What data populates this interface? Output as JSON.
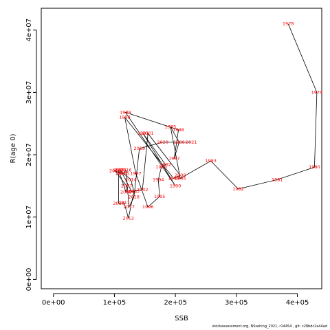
{
  "chart_data": {
    "type": "line",
    "xlabel": "SSB",
    "ylabel": "R(age 0)",
    "xlim": [
      -20000,
      440000
    ],
    "ylim": [
      -1500000,
      43500000
    ],
    "xticks": [
      0,
      100000,
      200000,
      300000,
      400000
    ],
    "xtick_labels": [
      "0e+00",
      "1e+05",
      "2e+05",
      "3e+05",
      "4e+05"
    ],
    "yticks": [
      0,
      10000000,
      20000000,
      30000000,
      40000000
    ],
    "ytick_labels": [
      "0e+00",
      "1e+07",
      "2e+07",
      "3e+07",
      "4e+07"
    ],
    "label_color": "#ff0000",
    "line_color": "#000000",
    "points": [
      {
        "year": "1978",
        "ssb": 385000,
        "rec": 41000000
      },
      {
        "year": "1979",
        "ssb": 432000,
        "rec": 30000000
      },
      {
        "year": "1980",
        "ssb": 428000,
        "rec": 18000000
      },
      {
        "year": "1981",
        "ssb": 367000,
        "rec": 16000000
      },
      {
        "year": "1982",
        "ssb": 303000,
        "rec": 14500000
      },
      {
        "year": "1983",
        "ssb": 258000,
        "rec": 19000000
      },
      {
        "year": "1984",
        "ssb": 208000,
        "rec": 16200000
      },
      {
        "year": "1985",
        "ssb": 192000,
        "rec": 24500000
      },
      {
        "year": "1986",
        "ssb": 206000,
        "rec": 22000000
      },
      {
        "year": "1987",
        "ssb": 198000,
        "rec": 19400000
      },
      {
        "year": "1988",
        "ssb": 205000,
        "rec": 24000000
      },
      {
        "year": "1989",
        "ssb": 118000,
        "rec": 26800000
      },
      {
        "year": "1990",
        "ssb": 200000,
        "rec": 15000000
      },
      {
        "year": "1991",
        "ssb": 147000,
        "rec": 23400000
      },
      {
        "year": "1992",
        "ssb": 184000,
        "rec": 18400000
      },
      {
        "year": "1993",
        "ssb": 177000,
        "rec": 18000000
      },
      {
        "year": "1994",
        "ssb": 172000,
        "rec": 16000000
      },
      {
        "year": "1995",
        "ssb": 174000,
        "rec": 13300000
      },
      {
        "year": "1996",
        "ssb": 155000,
        "rec": 11600000
      },
      {
        "year": "1997",
        "ssb": 135000,
        "rec": 17000000
      },
      {
        "year": "1998",
        "ssb": 117000,
        "rec": 26000000
      },
      {
        "year": "1999",
        "ssb": 197000,
        "rec": 16200000
      },
      {
        "year": "2000",
        "ssb": 208000,
        "rec": 16700000
      },
      {
        "year": "2001",
        "ssb": 155000,
        "rec": 23400000
      },
      {
        "year": "2002",
        "ssb": 146000,
        "rec": 14400000
      },
      {
        "year": "2003",
        "ssb": 128000,
        "rec": 14100000
      },
      {
        "year": "2004",
        "ssb": 110000,
        "rec": 17600000
      },
      {
        "year": "2005",
        "ssb": 111000,
        "rec": 17000000
      },
      {
        "year": "2006",
        "ssb": 101000,
        "rec": 17400000
      },
      {
        "year": "2007",
        "ssb": 120000,
        "rec": 15000000
      },
      {
        "year": "2008",
        "ssb": 119000,
        "rec": 14000000
      },
      {
        "year": "2009",
        "ssb": 107000,
        "rec": 17500000
      },
      {
        "year": "2010",
        "ssb": 107000,
        "rec": 12200000
      },
      {
        "year": "2011",
        "ssb": 116000,
        "rec": 12300000
      },
      {
        "year": "2012",
        "ssb": 123000,
        "rec": 9800000
      },
      {
        "year": "2013",
        "ssb": 132000,
        "rec": 14100000
      },
      {
        "year": "2014",
        "ssb": 127000,
        "rec": 16000000
      },
      {
        "year": "2015",
        "ssb": 115000,
        "rec": 17000000
      },
      {
        "year": "2016",
        "ssb": 119000,
        "rec": 17500000
      },
      {
        "year": "2017",
        "ssb": 124000,
        "rec": 11600000
      },
      {
        "year": "2018",
        "ssb": 132000,
        "rec": 13200000
      },
      {
        "year": "2019",
        "ssb": 141000,
        "rec": 21000000
      },
      {
        "year": "2020",
        "ssb": 179000,
        "rec": 22000000
      },
      {
        "year": "2021",
        "ssb": 226000,
        "rec": 22000000
      }
    ]
  },
  "footer": "stockassessment.org, NSsehing_2021, r14454 ,  git: c28bdc2a44ad"
}
